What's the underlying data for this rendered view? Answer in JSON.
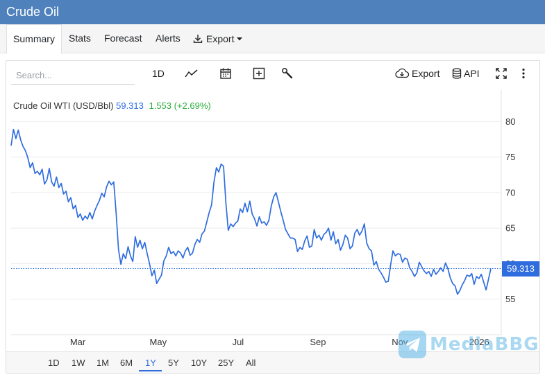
{
  "app": {
    "title": "Crude Oil"
  },
  "tabs": [
    {
      "label": "Summary",
      "active": true
    },
    {
      "label": "Stats"
    },
    {
      "label": "Forecast"
    },
    {
      "label": "Alerts"
    },
    {
      "label": "Export",
      "icon": "download-icon",
      "has_caret": true
    }
  ],
  "toolbar": {
    "search_placeholder": "Search...",
    "interval": "1D",
    "chart_type_icon": "line-chart-icon",
    "calendar_icon": "calendar-icon",
    "add_icon": "plus-box-icon",
    "tools_icon": "wrench-icon",
    "export_label": "Export",
    "export_icon": "cloud-download-icon",
    "api_label": "API",
    "api_icon": "database-icon",
    "fullscreen_icon": "expand-icon",
    "menu_icon": "kebab-icon"
  },
  "legend": {
    "name": "Crude Oil WTI (USD/Bbl)",
    "price": "59.313",
    "change": "1.553 (+2.69%)"
  },
  "colors": {
    "line": "#2f6ddf",
    "positive": "#2bab3c",
    "header": "#4f81bd"
  },
  "ranges": [
    {
      "label": "1D"
    },
    {
      "label": "1W"
    },
    {
      "label": "1M"
    },
    {
      "label": "6M"
    },
    {
      "label": "1Y",
      "active": true
    },
    {
      "label": "5Y"
    },
    {
      "label": "10Y"
    },
    {
      "label": "25Y"
    },
    {
      "label": "All"
    }
  ],
  "watermark": {
    "text": "MediaBBG"
  },
  "chart_data": {
    "type": "line",
    "title": "",
    "xlabel": "",
    "ylabel": "",
    "x_ticks": [
      "Mar",
      "May",
      "Jul",
      "Sep",
      "Nov",
      "2026"
    ],
    "y_ticks": [
      55,
      60,
      65,
      70,
      75,
      80
    ],
    "ylim": [
      50,
      81.5
    ],
    "grid": true,
    "current_value": 59.313,
    "current_label": "59.313",
    "series": [
      {
        "values": [
          76.6,
          78.9,
          77.6,
          78.8,
          77.4,
          76.5,
          75.9,
          74.9,
          73.5,
          74.2,
          72.7,
          73.0,
          72.5,
          73.3,
          71.2,
          71.8,
          73.4,
          71.5,
          70.9,
          72.2,
          70.7,
          71.3,
          69.8,
          70.2,
          68.7,
          69.3,
          67.7,
          68.2,
          66.5,
          67.0,
          66.1,
          66.7,
          66.3,
          67.2,
          66.3,
          67.4,
          68.2,
          68.9,
          69.9,
          69.4,
          70.8,
          71.6,
          71.1,
          71.5,
          67.1,
          62.0,
          59.9,
          61.4,
          60.7,
          62.4,
          61.1,
          60.3,
          63.8,
          62.3,
          63.3,
          62.1,
          63.0,
          61.4,
          60.0,
          58.3,
          59.1,
          57.2,
          57.8,
          58.4,
          60.4,
          61.1,
          62.3,
          61.4,
          61.7,
          61.1,
          61.8,
          61.5,
          60.8,
          61.8,
          62.3,
          61.2,
          61.5,
          62.7,
          63.4,
          63.0,
          64.2,
          64.6,
          65.9,
          67.2,
          68.3,
          71.5,
          73.5,
          72.9,
          74.0,
          73.7,
          68.5,
          64.7,
          65.6,
          65.2,
          65.7,
          66.0,
          67.7,
          67.2,
          68.5,
          67.3,
          68.8,
          67.0,
          66.3,
          65.3,
          66.6,
          65.7,
          65.9,
          65.4,
          66.1,
          68.1,
          69.4,
          70.0,
          68.7,
          67.3,
          66.1,
          64.8,
          64.2,
          63.6,
          63.6,
          63.4,
          61.7,
          62.3,
          62.0,
          63.2,
          63.9,
          62.3,
          62.5,
          64.8,
          63.6,
          64.0,
          63.3,
          64.1,
          64.4,
          65.0,
          63.3,
          64.5,
          62.8,
          63.4,
          61.9,
          62.7,
          64.0,
          63.6,
          62.1,
          62.5,
          64.3,
          64.8,
          64.0,
          64.6,
          65.6,
          62.9,
          62.1,
          61.8,
          59.8,
          60.3,
          59.2,
          58.7,
          58.1,
          57.4,
          57.5,
          59.8,
          61.8,
          61.1,
          61.4,
          61.3,
          60.2,
          60.8,
          60.6,
          59.4,
          58.9,
          58.2,
          58.7,
          60.2,
          59.6,
          59.0,
          58.6,
          58.9,
          58.2,
          59.2,
          58.5,
          58.9,
          59.4,
          58.9,
          60.1,
          59.3,
          58.0,
          57.2,
          56.9,
          55.7,
          56.2,
          57.0,
          57.6,
          58.4,
          58.2,
          58.6,
          57.1,
          58.2,
          57.9,
          58.5,
          57.4,
          56.3,
          57.8,
          59.3
        ]
      }
    ]
  }
}
